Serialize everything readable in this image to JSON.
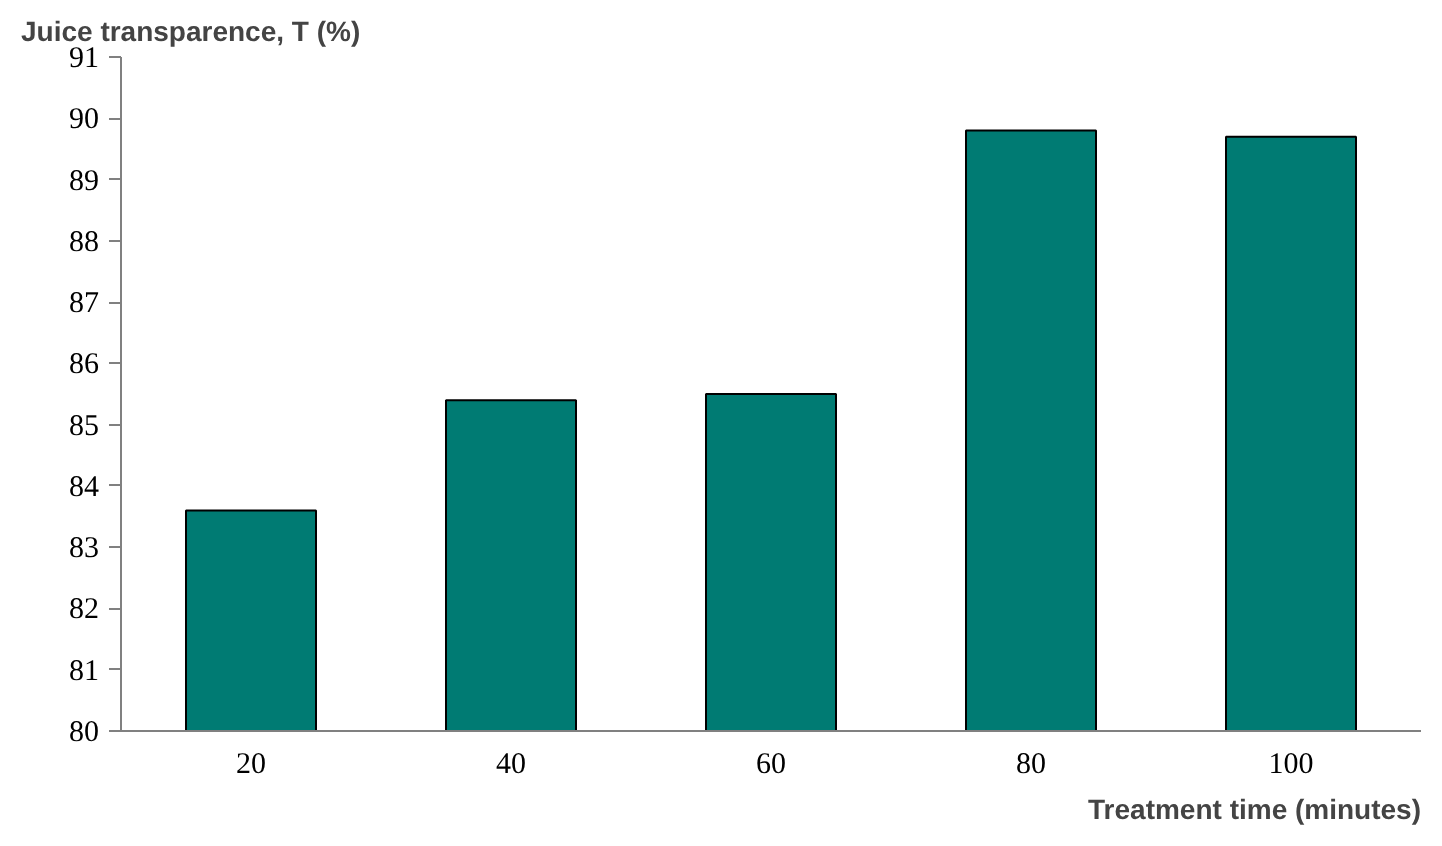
{
  "chart_data": {
    "type": "bar",
    "title": "Juice transparence, T (%)",
    "xlabel": "Treatment time (minutes)",
    "categories": [
      "20",
      "40",
      "60",
      "80",
      "100"
    ],
    "values": [
      83.6,
      85.4,
      85.5,
      89.8,
      89.7
    ],
    "color": "#007b73",
    "ylim": [
      80,
      91
    ],
    "yticks": [
      80,
      81,
      82,
      83,
      84,
      85,
      86,
      87,
      88,
      89,
      90,
      91
    ],
    "grid": false
  }
}
